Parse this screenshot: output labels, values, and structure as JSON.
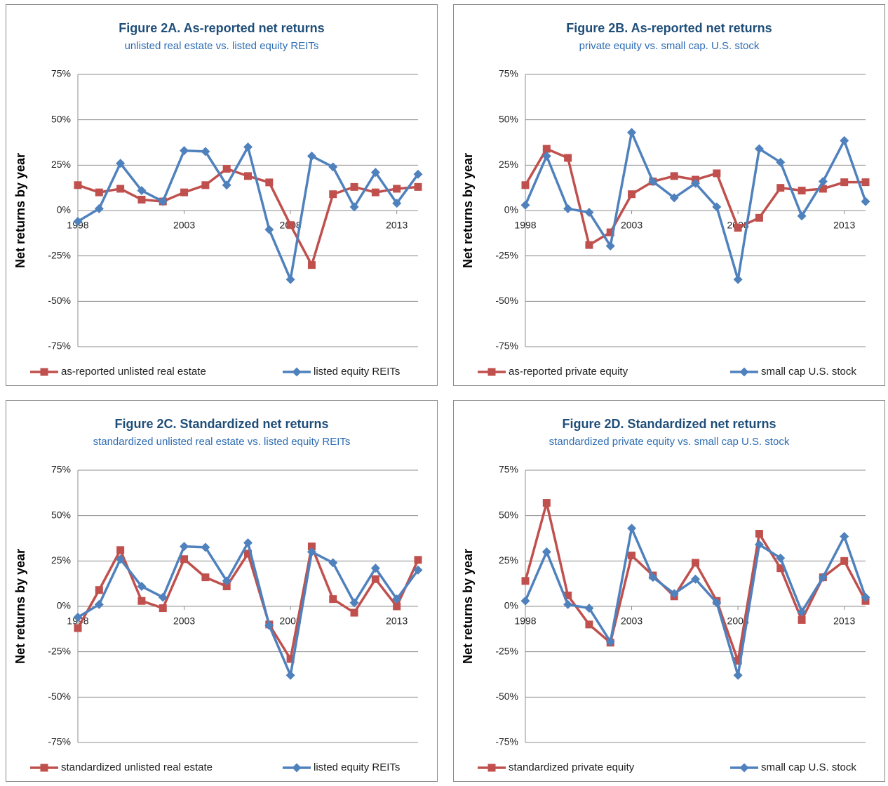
{
  "chart_data": [
    {
      "type": "line",
      "title": "Figure 2A. As-reported net returns",
      "subtitle": "unlisted real estate vs. listed equity REITs",
      "y_label": "Net returns by year",
      "x": [
        1998,
        1999,
        2000,
        2001,
        2002,
        2003,
        2004,
        2005,
        2006,
        2007,
        2008,
        2009,
        2010,
        2011,
        2012,
        2013,
        2014
      ],
      "xlim": [
        1998,
        2014
      ],
      "xticks": [
        1998,
        2003,
        2008,
        2013
      ],
      "ylim": [
        -75,
        75
      ],
      "yticks": [
        {
          "value": -75,
          "label": "-75%"
        },
        {
          "value": -50,
          "label": "-50%"
        },
        {
          "value": -25,
          "label": "-25%"
        },
        {
          "value": 0,
          "label": "0%"
        },
        {
          "value": 25,
          "label": "25%"
        },
        {
          "value": 50,
          "label": "50%"
        },
        {
          "value": 75,
          "label": "75%"
        }
      ],
      "grid": true,
      "series": [
        {
          "name": "as-reported unlisted real estate",
          "color": "#c0504d",
          "marker": "square",
          "values": [
            14,
            10,
            12,
            6,
            5,
            10,
            14,
            23,
            19,
            15.5,
            -8,
            -30,
            9,
            13,
            10,
            12,
            13
          ]
        },
        {
          "name": "listed equity REITs",
          "color": "#4f81bd",
          "marker": "diamond",
          "values": [
            -6,
            1,
            26,
            11,
            5,
            33,
            32.5,
            14,
            35,
            -10.5,
            -38,
            30,
            24,
            2,
            21,
            4,
            20
          ]
        }
      ]
    },
    {
      "type": "line",
      "title": "Figure 2B. As-reported net returns",
      "subtitle": "private equity vs. small cap. U.S. stock",
      "y_label": "Net returns by year",
      "x": [
        1998,
        1999,
        2000,
        2001,
        2002,
        2003,
        2004,
        2005,
        2006,
        2007,
        2008,
        2009,
        2010,
        2011,
        2012,
        2013,
        2014
      ],
      "xlim": [
        1998,
        2014
      ],
      "xticks": [
        1998,
        2003,
        2008,
        2013
      ],
      "ylim": [
        -75,
        75
      ],
      "yticks": [
        {
          "value": -75,
          "label": "-75%"
        },
        {
          "value": -50,
          "label": "-50%"
        },
        {
          "value": -25,
          "label": "-25%"
        },
        {
          "value": 0,
          "label": "0%"
        },
        {
          "value": 25,
          "label": "25%"
        },
        {
          "value": 50,
          "label": "50%"
        },
        {
          "value": 75,
          "label": "75%"
        }
      ],
      "grid": true,
      "series": [
        {
          "name": "as-reported private equity",
          "color": "#c0504d",
          "marker": "square",
          "values": [
            14,
            34,
            29,
            -19,
            -12,
            9,
            16,
            19,
            17,
            20.5,
            -9.5,
            -4,
            12.5,
            11,
            12,
            15.6,
            15.6
          ]
        },
        {
          "name": "small cap U.S. stock",
          "color": "#4f81bd",
          "marker": "diamond",
          "values": [
            3,
            30,
            1,
            -1,
            -19.5,
            43,
            16,
            7,
            15,
            2,
            -38,
            34,
            26.6,
            -3,
            16,
            38.5,
            5
          ]
        }
      ]
    },
    {
      "type": "line",
      "title": "Figure 2C. Standardized net returns",
      "subtitle": "standardized unlisted real estate vs. listed equity REITs",
      "y_label": "Net returns by year",
      "x": [
        1998,
        1999,
        2000,
        2001,
        2002,
        2003,
        2004,
        2005,
        2006,
        2007,
        2008,
        2009,
        2010,
        2011,
        2012,
        2013,
        2014
      ],
      "xlim": [
        1998,
        2014
      ],
      "xticks": [
        1998,
        2003,
        2008,
        2013
      ],
      "ylim": [
        -75,
        75
      ],
      "yticks": [
        {
          "value": -75,
          "label": "-75%"
        },
        {
          "value": -50,
          "label": "-50%"
        },
        {
          "value": -25,
          "label": "-25%"
        },
        {
          "value": 0,
          "label": "0%"
        },
        {
          "value": 25,
          "label": "25%"
        },
        {
          "value": 50,
          "label": "50%"
        },
        {
          "value": 75,
          "label": "75%"
        }
      ],
      "grid": true,
      "series": [
        {
          "name": "standardized unlisted real estate",
          "color": "#c0504d",
          "marker": "square",
          "values": [
            -12,
            9,
            31,
            3,
            -1,
            26,
            16,
            11,
            29,
            -10,
            -29,
            33,
            4,
            -3.5,
            15,
            0,
            25.6
          ]
        },
        {
          "name": "listed equity REITs",
          "color": "#4f81bd",
          "marker": "diamond",
          "values": [
            -6,
            1,
            26,
            11,
            5,
            33,
            32.5,
            14,
            35,
            -10.5,
            -38,
            30,
            24,
            2,
            21,
            4,
            20
          ]
        }
      ]
    },
    {
      "type": "line",
      "title": "Figure 2D. Standardized net returns",
      "subtitle": "standardized private equity vs. small cap U.S. stock",
      "y_label": "Net returns by year",
      "x": [
        1998,
        1999,
        2000,
        2001,
        2002,
        2003,
        2004,
        2005,
        2006,
        2007,
        2008,
        2009,
        2010,
        2011,
        2012,
        2013,
        2014
      ],
      "xlim": [
        1998,
        2014
      ],
      "xticks": [
        1998,
        2003,
        2008,
        2013
      ],
      "ylim": [
        -75,
        75
      ],
      "yticks": [
        {
          "value": -75,
          "label": "-75%"
        },
        {
          "value": -50,
          "label": "-50%"
        },
        {
          "value": -25,
          "label": "-25%"
        },
        {
          "value": 0,
          "label": "0%"
        },
        {
          "value": 25,
          "label": "25%"
        },
        {
          "value": 50,
          "label": "50%"
        },
        {
          "value": 75,
          "label": "75%"
        }
      ],
      "grid": true,
      "series": [
        {
          "name": "standardized private equity",
          "color": "#c0504d",
          "marker": "square",
          "values": [
            14,
            57,
            6,
            -10,
            -20,
            28,
            17,
            5.5,
            24,
            3,
            -30,
            40,
            21,
            -7.5,
            16,
            25,
            3
          ]
        },
        {
          "name": "small cap U.S. stock",
          "color": "#4f81bd",
          "marker": "diamond",
          "values": [
            3,
            30,
            1,
            -1,
            -19.5,
            43,
            16,
            7,
            15,
            2,
            -38,
            34,
            26.6,
            -3,
            16,
            38.5,
            5
          ]
        }
      ]
    }
  ]
}
